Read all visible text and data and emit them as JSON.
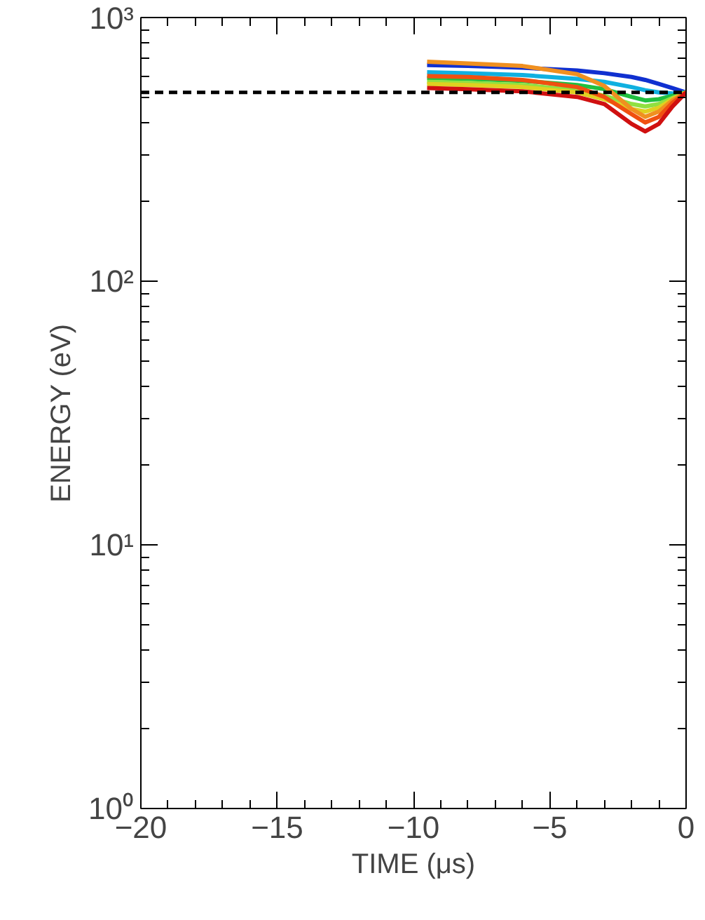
{
  "chart_data": {
    "type": "line",
    "xlabel": "TIME (μs)",
    "ylabel": "ENERGY (eV)",
    "log": "y",
    "grid": false,
    "marker": "none",
    "line_style": "solid",
    "xlim": [
      -20,
      0
    ],
    "xticks": [
      -20,
      -15,
      -10,
      -5,
      0
    ],
    "ylim": [
      1,
      1000
    ],
    "yticks": [
      {
        "value": 1,
        "label": "10⁰"
      },
      {
        "value": 10,
        "label": "10¹"
      },
      {
        "value": 100,
        "label": "10²"
      },
      {
        "value": 1000,
        "label": "10³"
      }
    ],
    "x": [
      -9.5,
      -8,
      -6,
      -4,
      -3,
      -2,
      -1.5,
      -1,
      -0.5,
      0
    ],
    "series": [
      {
        "color": "#1030d0",
        "values": [
          660,
          655,
          645,
          630,
          615,
          595,
          580,
          560,
          540,
          520
        ]
      },
      {
        "color": "#10b0e0",
        "values": [
          620,
          615,
          605,
          585,
          570,
          545,
          530,
          520,
          515,
          520
        ]
      },
      {
        "color": "#20c040",
        "values": [
          590,
          585,
          575,
          555,
          535,
          500,
          485,
          490,
          505,
          520
        ]
      },
      {
        "color": "#90e040",
        "values": [
          570,
          565,
          555,
          530,
          505,
          470,
          460,
          470,
          495,
          520
        ]
      },
      {
        "color": "#e0d020",
        "values": [
          560,
          555,
          545,
          520,
          490,
          450,
          440,
          455,
          490,
          520
        ]
      },
      {
        "color": "#f09020",
        "values": [
          680,
          670,
          655,
          610,
          550,
          450,
          420,
          440,
          485,
          520
        ]
      },
      {
        "color": "#f05010",
        "values": [
          600,
          595,
          580,
          545,
          500,
          430,
          400,
          420,
          475,
          520
        ]
      },
      {
        "color": "#d01010",
        "values": [
          540,
          535,
          525,
          500,
          470,
          395,
          370,
          395,
          460,
          520
        ]
      }
    ],
    "ref_lines": [
      {
        "axis": "y",
        "value": 520,
        "color": "#000000",
        "line_style": "dashed"
      }
    ]
  }
}
